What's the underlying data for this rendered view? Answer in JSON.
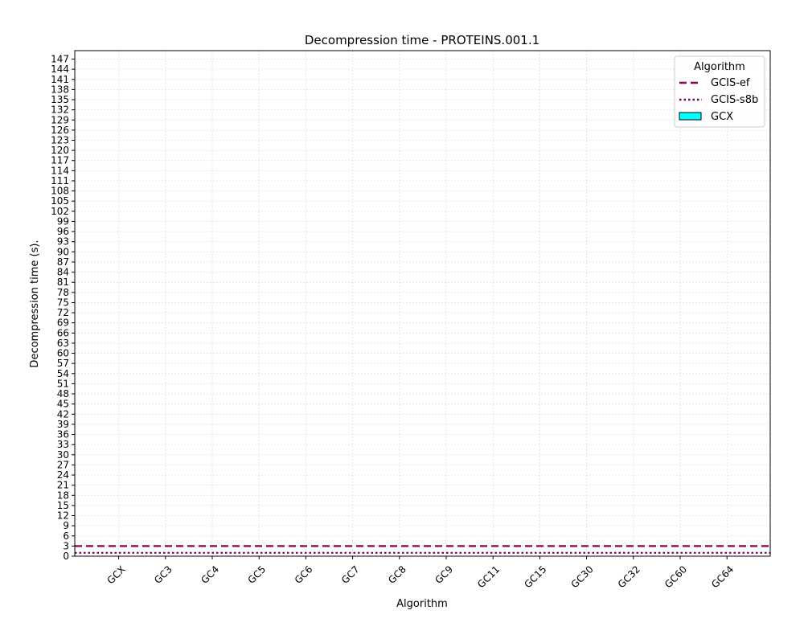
{
  "chart_data": {
    "type": "bar",
    "title": "Decompression time -  PROTEINS.001.1",
    "xlabel": "Algorithm",
    "ylabel": "Decompression time (s).",
    "categories": [
      "GCX",
      "GC3",
      "GC4",
      "GC5",
      "GC6",
      "GC7",
      "GC8",
      "GC9",
      "GC11",
      "GC15",
      "GC30",
      "GC32",
      "GC60",
      "GC64"
    ],
    "series": [
      {
        "name": "GCX",
        "values": [
          null,
          null,
          null,
          null,
          null,
          null,
          null,
          null,
          null,
          null,
          null,
          null,
          null,
          null
        ],
        "color": "#00ffff"
      }
    ],
    "reference_lines": [
      {
        "name": "GCIS-ef",
        "value": 3.0,
        "style": "dashed",
        "color": "#8b0046"
      },
      {
        "name": "GCIS-s8b",
        "value": 1.0,
        "style": "dotted",
        "color": "#6a0066"
      }
    ],
    "ylim": [
      0,
      149.5
    ],
    "yticks": [
      0,
      3,
      6,
      9,
      12,
      15,
      18,
      21,
      24,
      27,
      30,
      33,
      36,
      39,
      42,
      45,
      48,
      51,
      54,
      57,
      60,
      63,
      66,
      69,
      72,
      75,
      78,
      81,
      84,
      87,
      90,
      93,
      96,
      99,
      102,
      105,
      108,
      111,
      114,
      117,
      120,
      123,
      126,
      129,
      132,
      135,
      138,
      141,
      144,
      147
    ],
    "grid": true,
    "legend": {
      "title": "Algorithm",
      "placement": "top-right"
    }
  }
}
